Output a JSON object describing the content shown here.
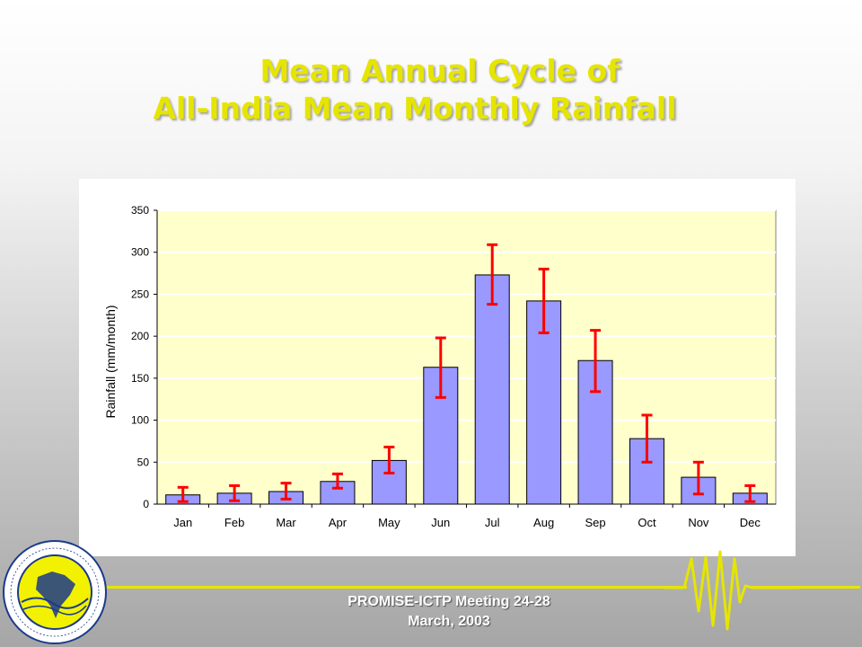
{
  "slide": {
    "title_line1": "Mean Annual Cycle of",
    "title_line2": "All-India Mean Monthly Rainfall",
    "footer_line1": "PROMISE-ICTP Meeting 24-28",
    "footer_line2": "March, 2003"
  },
  "colors": {
    "title": "#e5e500",
    "plot_background": "#ffffcc",
    "bar_fill": "#9999ff",
    "error_bar": "#ff0000",
    "accent_line": "#e5e500"
  },
  "logo": {
    "icon": "institute-seal-icon"
  },
  "chart_data": {
    "type": "bar",
    "title": "",
    "xlabel": "",
    "ylabel": "Rainfall (mm/month)",
    "ylim": [
      0,
      350
    ],
    "yticks": [
      0,
      50,
      100,
      150,
      200,
      250,
      300,
      350
    ],
    "grid": true,
    "categories": [
      "Jan",
      "Feb",
      "Mar",
      "Apr",
      "May",
      "Jun",
      "Jul",
      "Aug",
      "Sep",
      "Oct",
      "Nov",
      "Dec"
    ],
    "values": [
      11,
      13,
      15,
      27,
      52,
      163,
      273,
      242,
      171,
      78,
      32,
      13
    ],
    "error_low": [
      3,
      4,
      6,
      19,
      37,
      127,
      238,
      204,
      134,
      50,
      12,
      3
    ],
    "error_high": [
      20,
      22,
      25,
      36,
      68,
      198,
      309,
      280,
      207,
      106,
      50,
      22
    ]
  }
}
